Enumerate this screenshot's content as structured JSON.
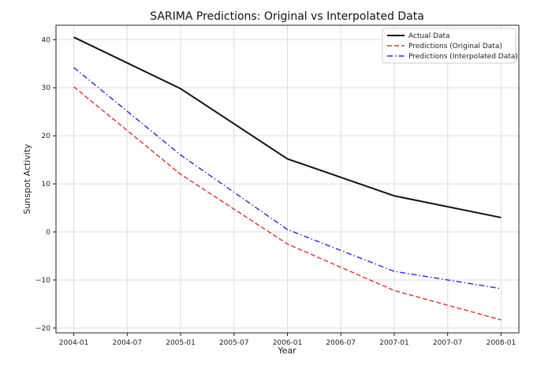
{
  "chart_data": {
    "type": "line",
    "title": "SARIMA Predictions: Original vs Interpolated Data",
    "xlabel": "Year",
    "ylabel": "Sunspot Activity",
    "x_ticks": [
      "2004-01",
      "2004-07",
      "2005-01",
      "2005-07",
      "2006-01",
      "2006-07",
      "2007-01",
      "2007-07",
      "2008-01"
    ],
    "y_ticks": [
      -20,
      -10,
      0,
      10,
      20,
      30,
      40
    ],
    "x": [
      "2004-01",
      "2005-01",
      "2006-01",
      "2007-01",
      "2008-01"
    ],
    "xlim": [
      "2003-11",
      "2008-03"
    ],
    "ylim": [
      -21,
      43
    ],
    "grid": true,
    "legend_position": "top-right",
    "series": [
      {
        "name": "Actual Data",
        "values": [
          40.5,
          29.8,
          15.2,
          7.5,
          3.0
        ],
        "color": "#111111",
        "style": "solid"
      },
      {
        "name": "Predictions (Original Data)",
        "values": [
          30.2,
          12.0,
          -2.5,
          -12.2,
          -18.3
        ],
        "color": "#e03030",
        "style": "dashed"
      },
      {
        "name": "Predictions (Interpolated Data)",
        "values": [
          34.2,
          16.0,
          0.5,
          -8.2,
          -11.8
        ],
        "color": "#2a2ad8",
        "style": "dashdot"
      }
    ]
  }
}
